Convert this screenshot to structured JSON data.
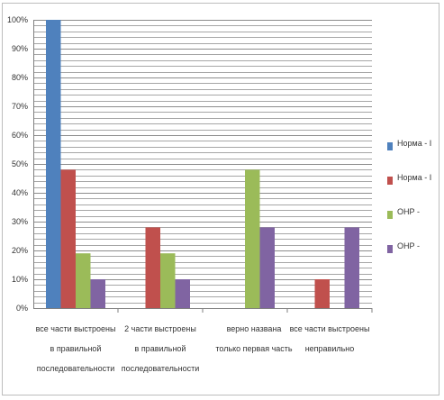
{
  "chart_data": {
    "type": "bar",
    "title": "",
    "xlabel": "",
    "ylabel": "",
    "ylim": [
      0,
      100
    ],
    "y_ticks": [
      "0%",
      "10%",
      "20%",
      "30%",
      "40%",
      "50%",
      "60%",
      "70%",
      "80%",
      "90%",
      "100%"
    ],
    "grid": true,
    "legend_position": "right",
    "categories": [
      [
        "все части выстроены",
        "в правильной",
        "последовательности"
      ],
      [
        "2 части выстроены",
        "в правильной",
        "последовательности"
      ],
      [
        "верно названа",
        "только первая часть"
      ],
      [
        "все части выстроены",
        "неправильно"
      ]
    ],
    "series": [
      {
        "name": "Норма - I",
        "color": "#4f81bd",
        "values": [
          100,
          0,
          0,
          0
        ]
      },
      {
        "name": "Норма - I",
        "color": "#c0504d",
        "values": [
          48,
          28,
          0,
          10
        ]
      },
      {
        "name": "ОНР -",
        "color": "#9bbb59",
        "values": [
          19,
          19,
          48,
          0
        ]
      },
      {
        "name": "ОНР -",
        "color": "#8064a2",
        "values": [
          10,
          10,
          28,
          28
        ]
      }
    ]
  }
}
